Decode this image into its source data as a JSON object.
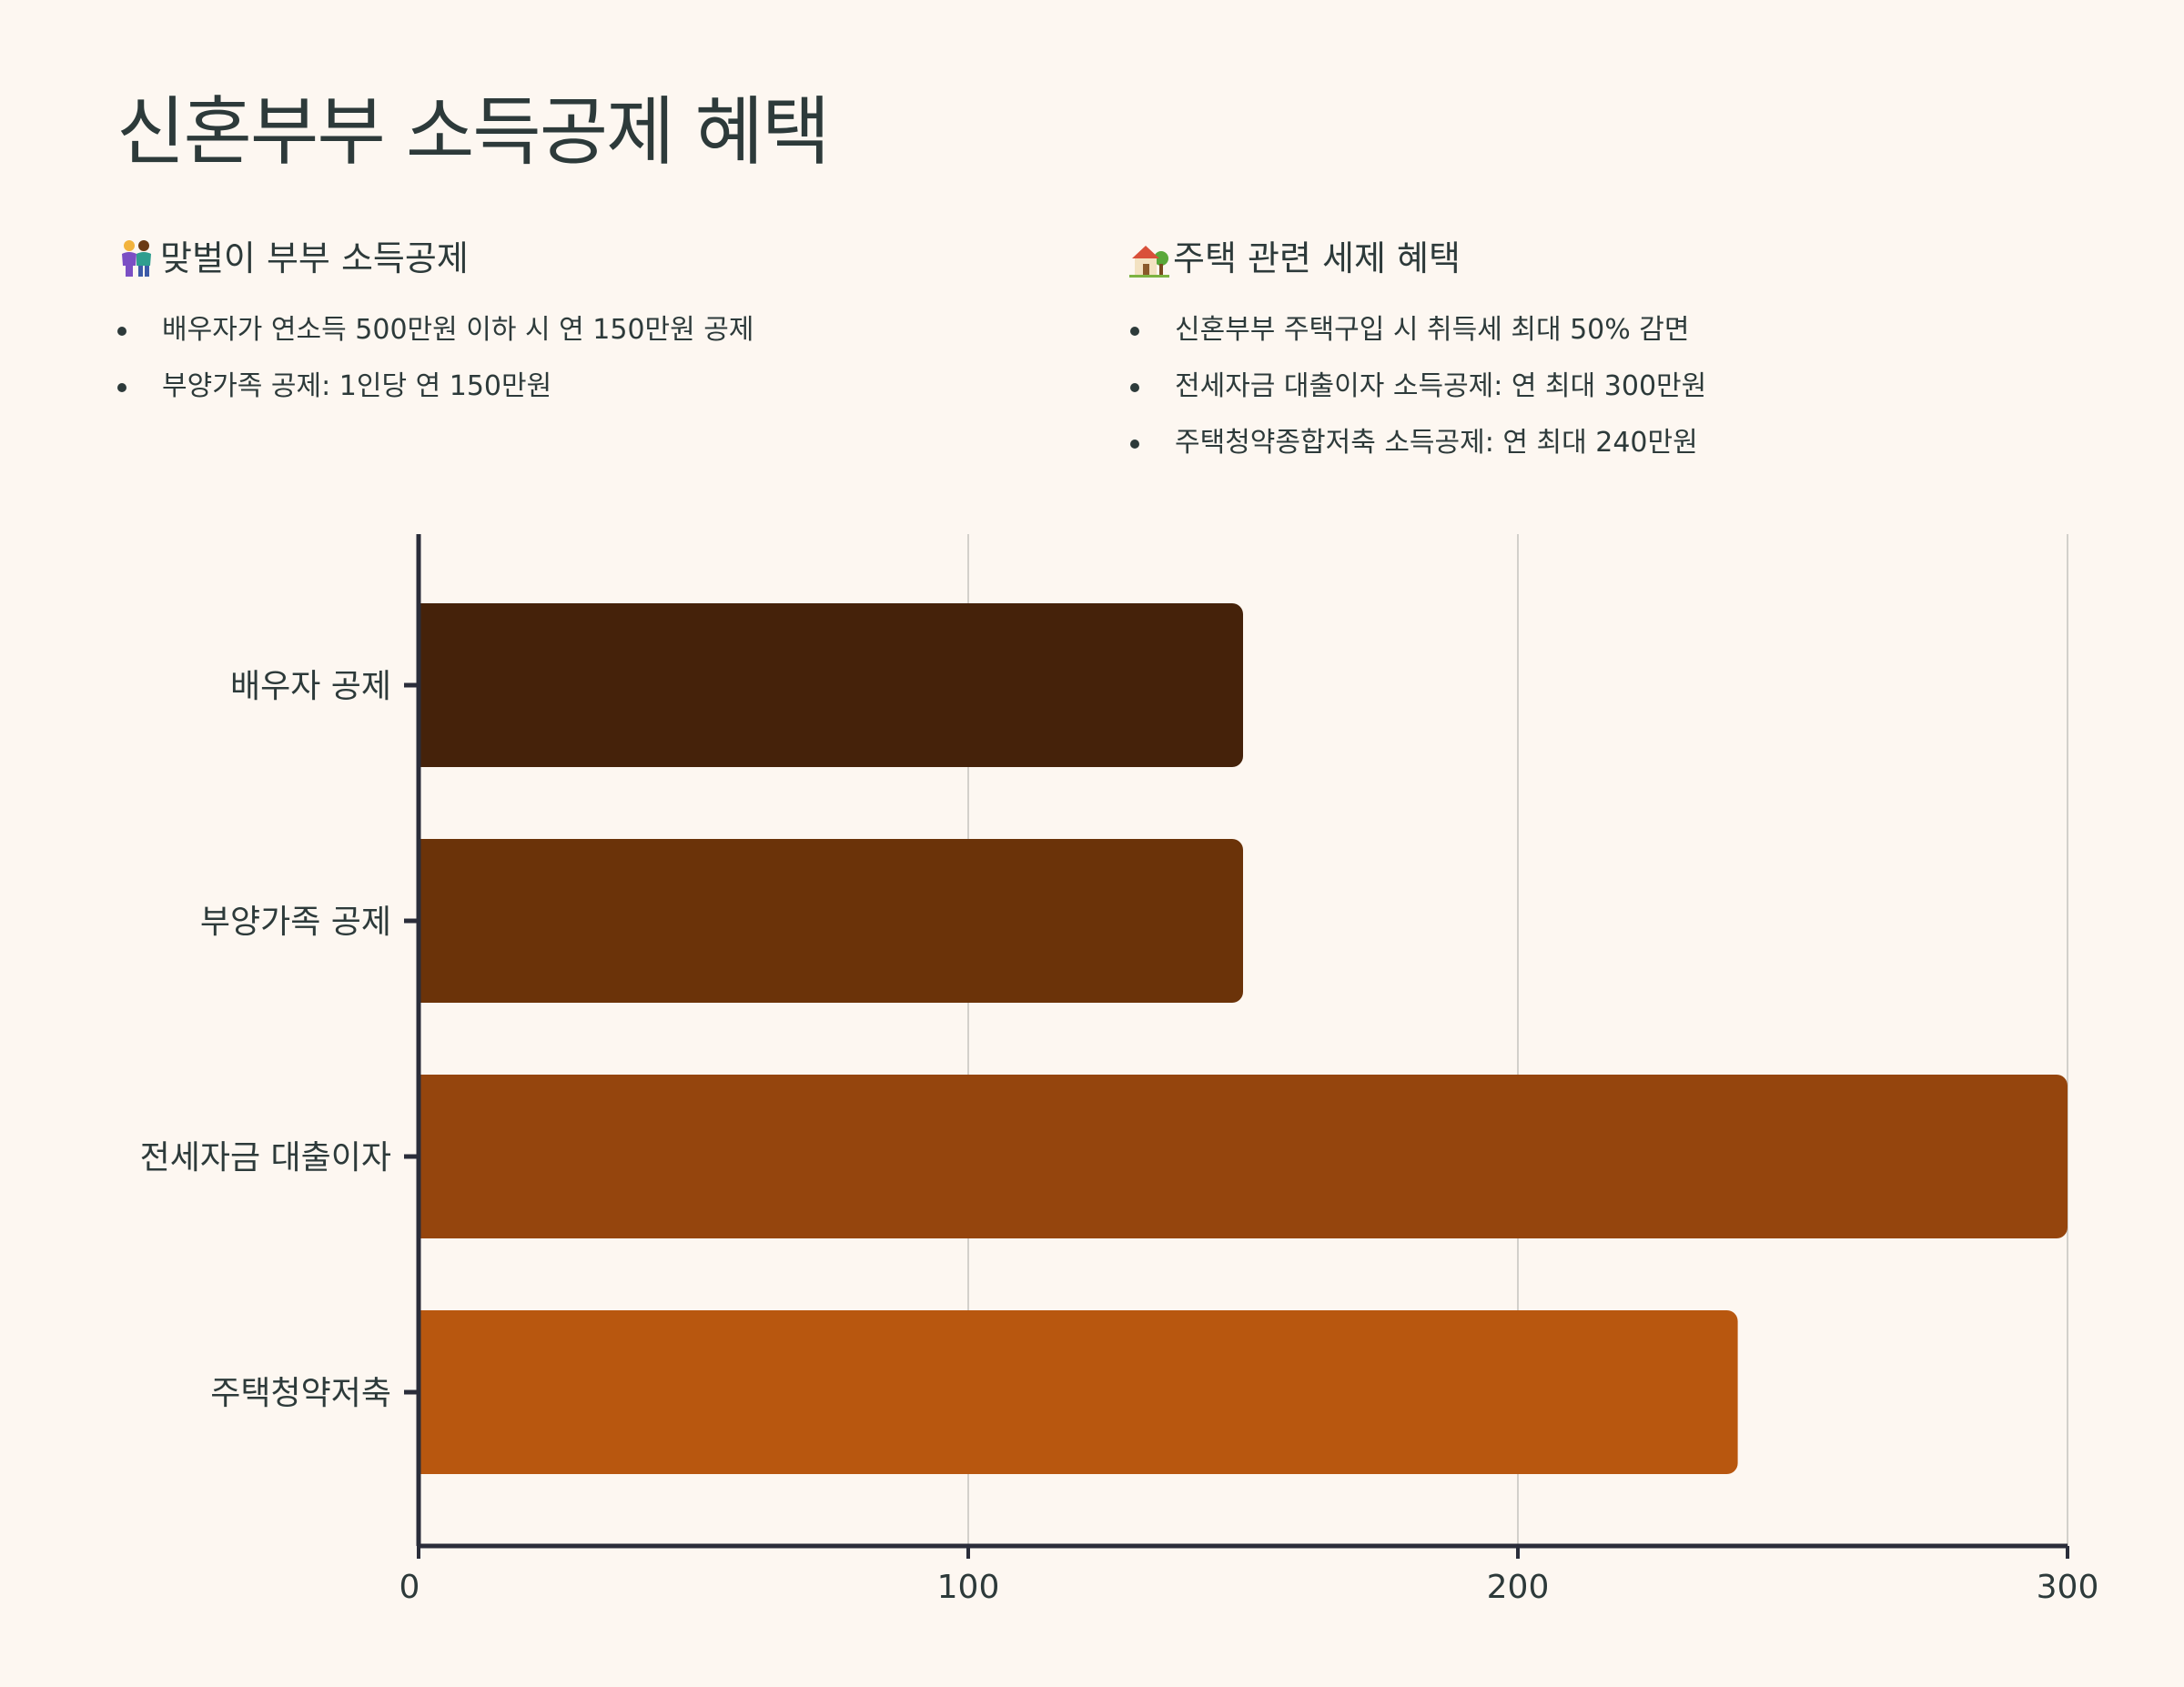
{
  "title": "신혼부부 소득공제 혜택",
  "sections": [
    {
      "icon": "couple-icon",
      "heading": "맞벌이 부부 소득공제",
      "items": [
        "배우자가 연소득 500만원 이하 시 연 150만원 공제",
        "부양가족 공제: 1인당 연 150만원"
      ]
    },
    {
      "icon": "house-icon",
      "heading": "주택 관련 세제 혜택",
      "items": [
        "신혼부부 주택구입 시 취득세 최대 50% 감면",
        "전세자금 대출이자 소득공제: 연 최대 300만원",
        "주택청약종합저축 소득공제: 연 최대 240만원"
      ]
    }
  ],
  "chart_data": {
    "type": "bar",
    "orientation": "horizontal",
    "categories": [
      "배우자 공제",
      "부양가족 공제",
      "전세자금 대출이자",
      "주택청약저축"
    ],
    "values": [
      150,
      150,
      300,
      240
    ],
    "colors": [
      "#45220a",
      "#6b3309",
      "#95450d",
      "#b8570f"
    ],
    "xlim": [
      0,
      300
    ],
    "xticks": [
      0,
      100,
      200,
      300
    ],
    "grid": true,
    "legend": false,
    "title": "",
    "xlabel": "",
    "ylabel": ""
  }
}
